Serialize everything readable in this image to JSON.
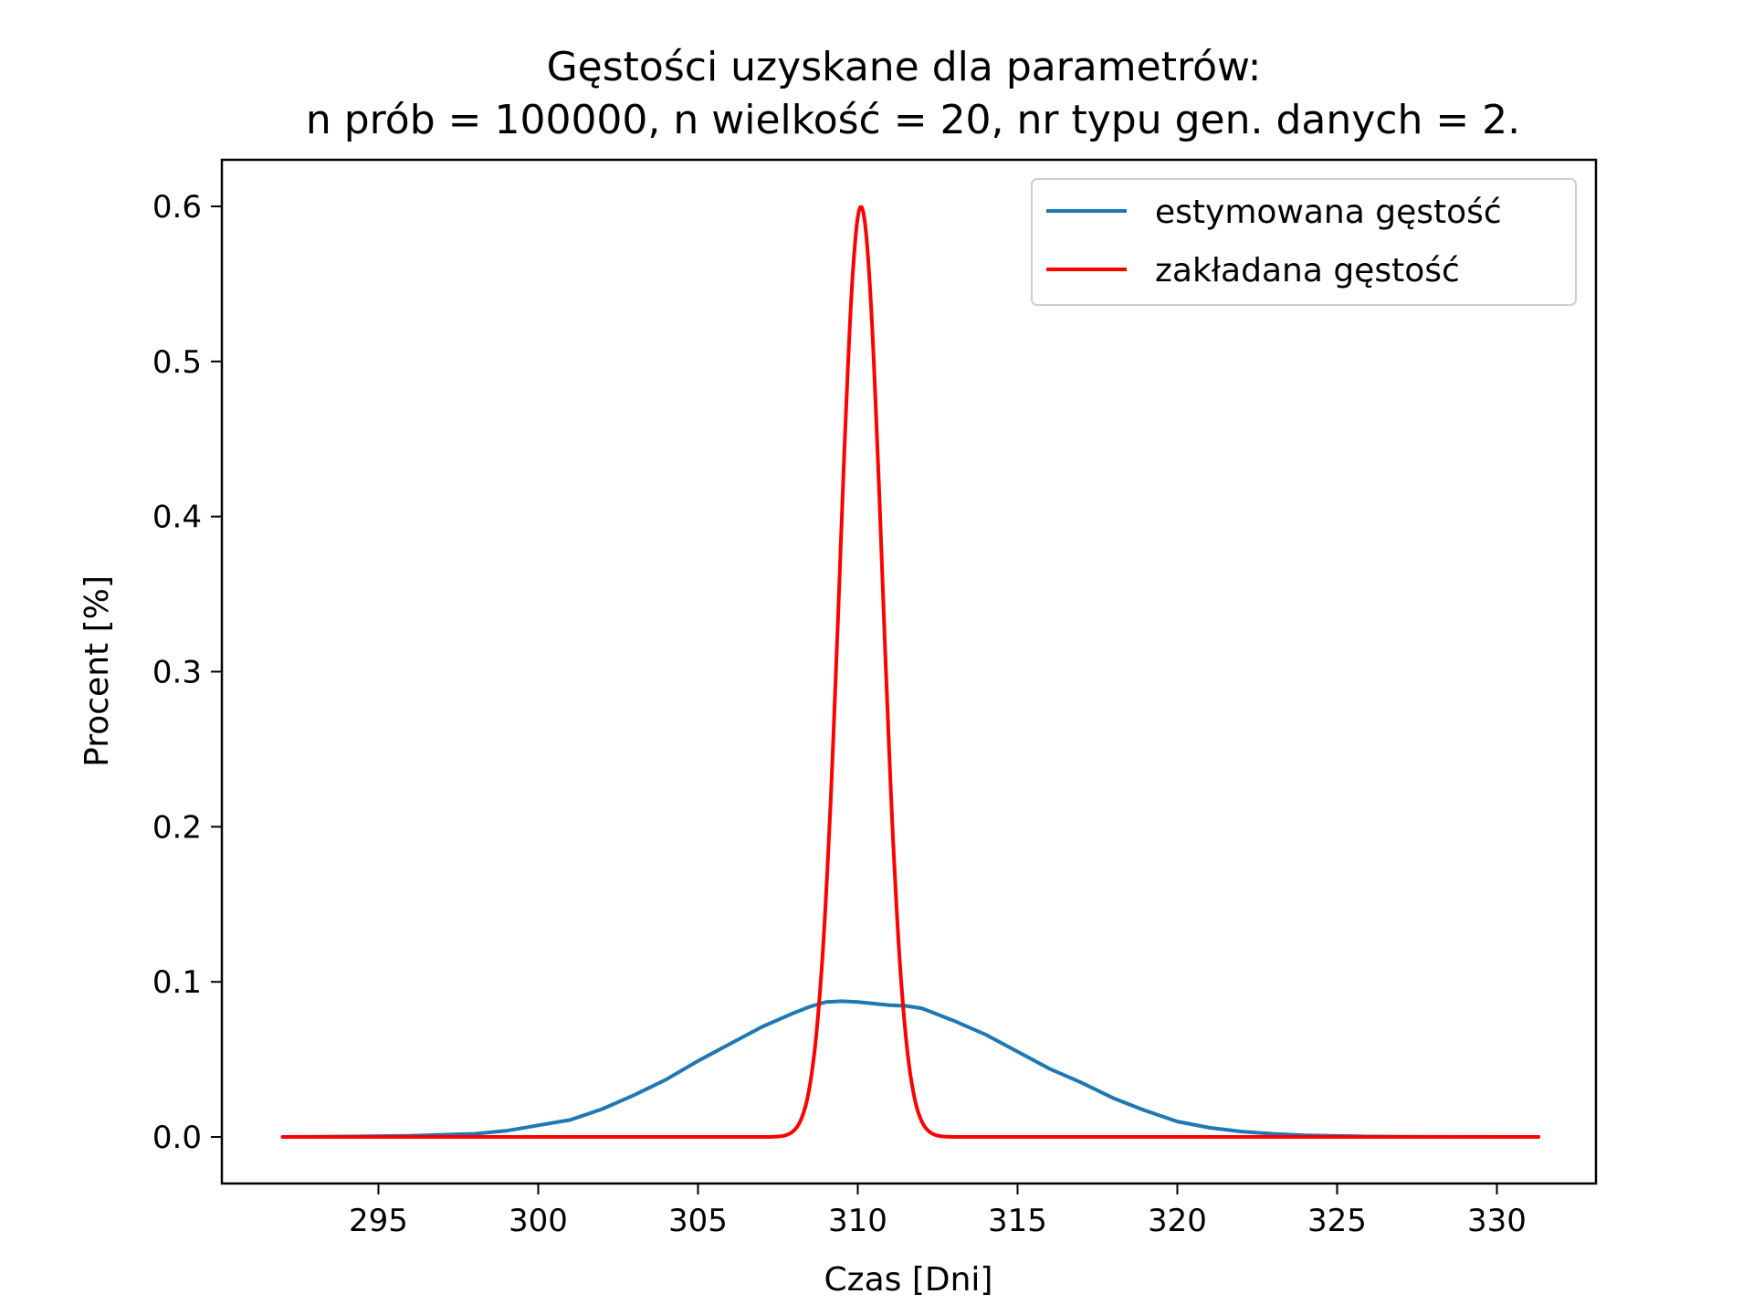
{
  "chart_data": {
    "type": "line",
    "title_line1": "Gęstości uzyskane dla parametrów:",
    "title_line2": "n prób = 100000, n wielkość = 20, nr typu gen. danych = 2.",
    "xlabel": "Czas [Dni]",
    "ylabel": "Procent [%]",
    "xlim": [
      290.1,
      333.1
    ],
    "ylim": [
      -0.03,
      0.63
    ],
    "xticks": [
      {
        "value": 295,
        "label": "295"
      },
      {
        "value": 300,
        "label": "300"
      },
      {
        "value": 305,
        "label": "305"
      },
      {
        "value": 310,
        "label": "310"
      },
      {
        "value": 315,
        "label": "315"
      },
      {
        "value": 320,
        "label": "320"
      },
      {
        "value": 325,
        "label": "325"
      },
      {
        "value": 330,
        "label": "330"
      }
    ],
    "yticks": [
      {
        "value": 0.0,
        "label": "0.0"
      },
      {
        "value": 0.1,
        "label": "0.1"
      },
      {
        "value": 0.2,
        "label": "0.2"
      },
      {
        "value": 0.3,
        "label": "0.3"
      },
      {
        "value": 0.4,
        "label": "0.4"
      },
      {
        "value": 0.5,
        "label": "0.5"
      },
      {
        "value": 0.6,
        "label": "0.6"
      }
    ],
    "grid": false,
    "legend_position": "top-right",
    "series": [
      {
        "name": "estymowana gęstość",
        "color": "#1f77b4",
        "x": [
          292.0,
          294.0,
          296.0,
          298.0,
          299.0,
          300.0,
          301.0,
          302.0,
          303.0,
          304.0,
          305.0,
          306.0,
          307.0,
          308.0,
          308.5,
          309.0,
          309.5,
          310.0,
          310.5,
          311.0,
          311.5,
          312.0,
          312.5,
          313.0,
          314.0,
          315.0,
          316.0,
          317.0,
          318.0,
          319.0,
          320.0,
          321.0,
          322.0,
          323.0,
          324.0,
          326.0,
          328.0,
          331.3
        ],
        "y": [
          0.0,
          0.0003,
          0.0008,
          0.002,
          0.004,
          0.0075,
          0.011,
          0.018,
          0.027,
          0.037,
          0.049,
          0.06,
          0.071,
          0.08,
          0.084,
          0.087,
          0.0875,
          0.087,
          0.086,
          0.085,
          0.0845,
          0.083,
          0.079,
          0.075,
          0.066,
          0.055,
          0.044,
          0.035,
          0.025,
          0.017,
          0.01,
          0.006,
          0.0035,
          0.002,
          0.001,
          0.0003,
          0.0001,
          0.0
        ]
      },
      {
        "name": "zakładana gęstość",
        "color": "#ff0000",
        "distribution": "normal",
        "mean": 310.1,
        "sd": 0.665,
        "x_range": [
          292.0,
          331.3
        ]
      }
    ]
  }
}
